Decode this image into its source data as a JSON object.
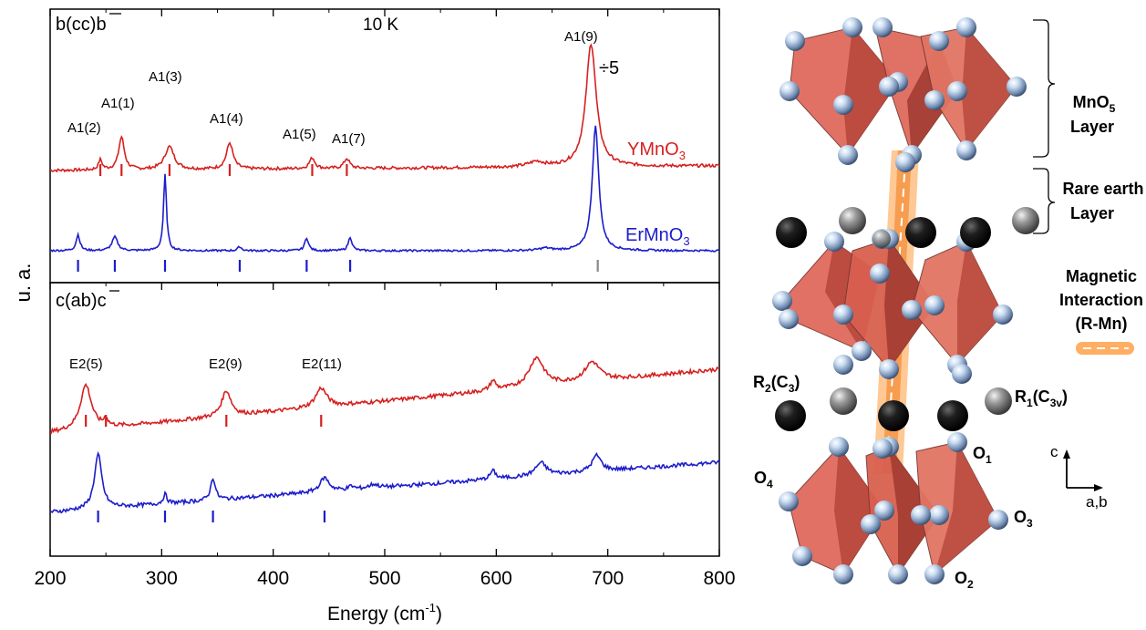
{
  "chart_data": {
    "type": "line",
    "xlabel_main": "Energy (cm",
    "xlabel_sup": "-1",
    "xlabel_close": ")",
    "ylabel": "u. a.",
    "xlim": [
      200,
      800
    ],
    "xticks": [
      "200",
      "300",
      "400",
      "500",
      "600",
      "700",
      "800"
    ],
    "xtick_values": [
      200,
      300,
      400,
      500,
      600,
      700,
      800
    ],
    "panels": [
      {
        "geometry_label": "b(cc)b",
        "temperature": "10 K",
        "division_note": "÷5",
        "series": [
          {
            "name_main": "YMnO",
            "name_sub": "3",
            "color": "#d62020",
            "baseline": 0.0,
            "peaks": [
              {
                "x": 245,
                "h": 0.12,
                "w": 2.0
              },
              {
                "x": 264,
                "h": 0.4,
                "w": 3.0
              },
              {
                "x": 307,
                "h": 0.28,
                "w": 5.0
              },
              {
                "x": 361,
                "h": 0.32,
                "w": 3.5
              },
              {
                "x": 435,
                "h": 0.13,
                "w": 3.0
              },
              {
                "x": 466,
                "h": 0.12,
                "w": 3.0
              },
              {
                "x": 636,
                "h": 0.06,
                "w": 8.0
              },
              {
                "x": 685,
                "h": 1.5,
                "w": 5.5
              }
            ],
            "markers": [
              245,
              264,
              307,
              361,
              435,
              466
            ],
            "noise": 0.018
          },
          {
            "name_main": "ErMnO",
            "name_sub": "3",
            "color": "#1c1ccc",
            "baseline": 0.0,
            "peaks": [
              {
                "x": 225,
                "h": 0.2,
                "w": 2.0
              },
              {
                "x": 258,
                "h": 0.17,
                "w": 3.0
              },
              {
                "x": 303,
                "h": 0.95,
                "w": 1.6
              },
              {
                "x": 370,
                "h": 0.05,
                "w": 2.0
              },
              {
                "x": 430,
                "h": 0.16,
                "w": 2.0
              },
              {
                "x": 469,
                "h": 0.17,
                "w": 2.0
              },
              {
                "x": 644,
                "h": 0.03,
                "w": 6.0
              },
              {
                "x": 689,
                "h": 1.55,
                "w": 3.5
              }
            ],
            "markers": [
              225,
              258,
              303,
              370,
              430,
              469
            ],
            "grey_markers": [
              691
            ],
            "noise": 0.012
          }
        ],
        "peak_labels": [
          {
            "text": "A1(2)",
            "x": 245
          },
          {
            "text": "A1(1)",
            "x": 264
          },
          {
            "text": "A1(3)",
            "x": 307
          },
          {
            "text": "A1(4)",
            "x": 361
          },
          {
            "text": "A1(5)",
            "x": 435
          },
          {
            "text": "A1(7)",
            "x": 466
          },
          {
            "text": "A1(9)",
            "x": 685
          }
        ]
      },
      {
        "geometry_label": "c(ab)c",
        "series": [
          {
            "color": "#d62020",
            "peaks": [
              {
                "x": 232,
                "h": 0.7,
                "w": 6.0
              },
              {
                "x": 250,
                "h": 0.12,
                "w": 2.0
              },
              {
                "x": 358,
                "h": 0.4,
                "w": 5.0
              },
              {
                "x": 443,
                "h": 0.3,
                "w": 6.0
              },
              {
                "x": 597,
                "h": 0.15,
                "w": 3.0
              },
              {
                "x": 636,
                "h": 0.45,
                "w": 8.0
              },
              {
                "x": 686,
                "h": 0.3,
                "w": 8.0
              }
            ],
            "markers": [
              232,
              250,
              358,
              443
            ],
            "noise": 0.03
          },
          {
            "color": "#1c1ccc",
            "peaks": [
              {
                "x": 243,
                "h": 0.85,
                "w": 4.0
              },
              {
                "x": 303,
                "h": 0.15,
                "w": 2.0
              },
              {
                "x": 346,
                "h": 0.35,
                "w": 2.5
              },
              {
                "x": 446,
                "h": 0.22,
                "w": 5.0
              },
              {
                "x": 470,
                "h": 0.05,
                "w": 3.0
              },
              {
                "x": 490,
                "h": 0.06,
                "w": 5.0
              },
              {
                "x": 597,
                "h": 0.13,
                "w": 3.0
              },
              {
                "x": 640,
                "h": 0.2,
                "w": 6.0
              },
              {
                "x": 690,
                "h": 0.25,
                "w": 5.0
              }
            ],
            "markers": [
              243,
              303,
              346,
              446
            ],
            "noise": 0.03
          }
        ],
        "peak_labels": [
          {
            "text": "E2(5)",
            "x": 232
          },
          {
            "text": "E2(9)",
            "x": 358
          },
          {
            "text": "E2(11)",
            "x": 443
          }
        ]
      }
    ]
  },
  "structure": {
    "labels": {
      "mno5_line1_main": "MnO",
      "mno5_line1_sub": "5",
      "mno5_line2": "Layer",
      "rare_line1": "Rare earth",
      "rare_line2": "Layer",
      "mag_line1": "Magnetic",
      "mag_line2": "Interaction",
      "mag_line3": "(R-Mn)",
      "r2_main": "R",
      "r2_sub": "2",
      "r2_site": "(C",
      "r2_site_sub": "3",
      "r2_close": ")",
      "r1_main": "R",
      "r1_sub": "1",
      "r1_site": "(C",
      "r1_site_sub": "3v",
      "r1_close": ")",
      "o1_main": "O",
      "o1_sub": "1",
      "o2_main": "O",
      "o2_sub": "2",
      "o3_main": "O",
      "o3_sub": "3",
      "o4_main": "O",
      "o4_sub": "4",
      "axis_c": "c",
      "axis_ab": "a,b"
    }
  }
}
